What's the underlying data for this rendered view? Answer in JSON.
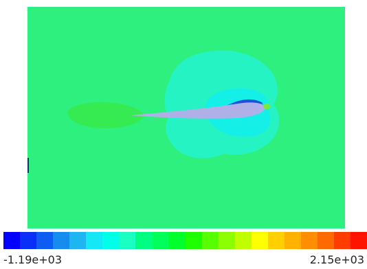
{
  "colorbar": {
    "min_label": "-1.19e+03",
    "max_label": "2.15e+03",
    "colors": [
      "#0000ff",
      "#0a2ff6",
      "#0f5cf2",
      "#178cef",
      "#1db6f0",
      "#14e8f5",
      "#00ffe8",
      "#1cffc2",
      "#00ff80",
      "#00ff5a",
      "#00ff2c",
      "#1eff00",
      "#57ff00",
      "#8cff00",
      "#c0ff00",
      "#ffff00",
      "#ffd000",
      "#ffb200",
      "#ff8f00",
      "#ff6a00",
      "#ff3d00",
      "#ff1400"
    ]
  },
  "contour_colors": {
    "background": "#2ef07e",
    "outer_zone": "#26f3c3",
    "middle_zone": "#14f0e8",
    "leading_edge": "#1f8fe6",
    "upper_tip": "#1b54d6",
    "wake": "#36ea52",
    "airfoil": "#b0b0e8",
    "stagnation": "#7ee836"
  }
}
